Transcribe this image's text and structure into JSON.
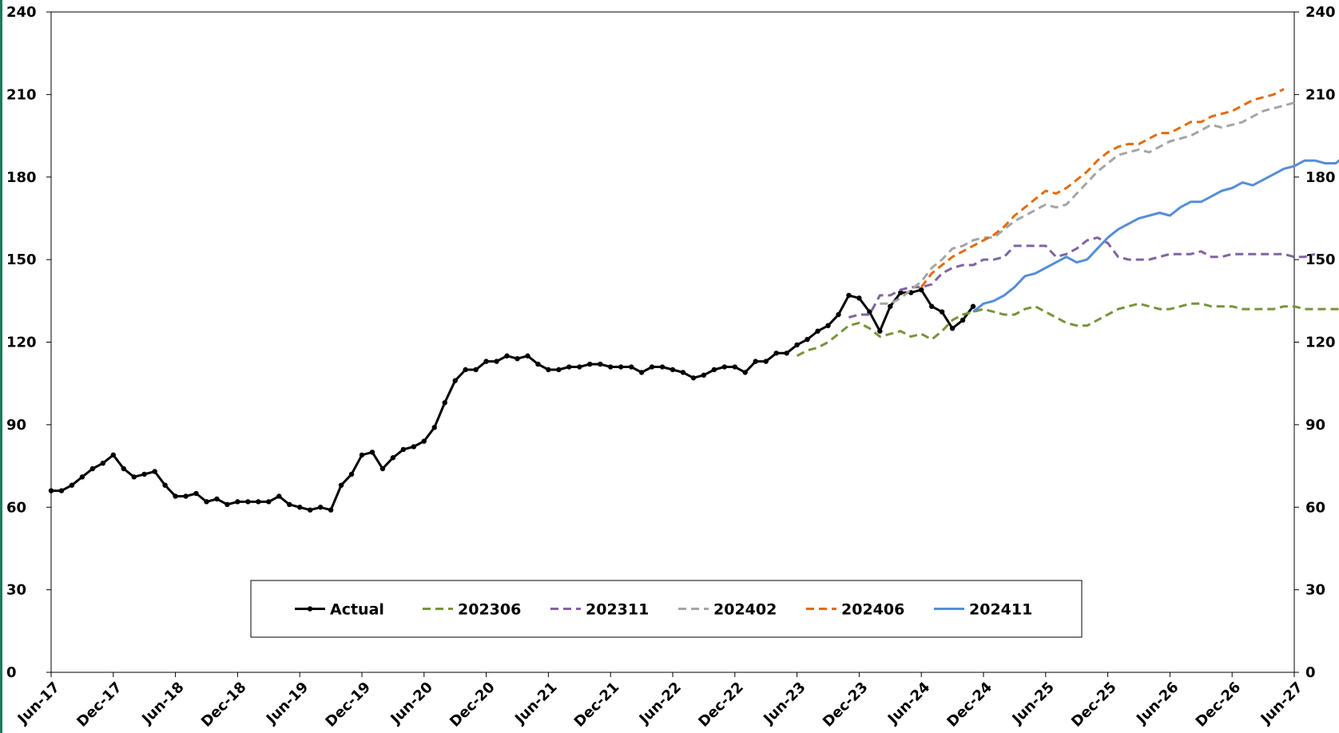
{
  "chart_data": {
    "type": "line",
    "title": "",
    "xlabel": "",
    "ylabel": "",
    "ylim": [
      0,
      240
    ],
    "yticks": [
      "0",
      "30",
      "60",
      "90",
      "120",
      "150",
      "180",
      "210",
      "240"
    ],
    "xticks": [
      "Jun-17",
      "Dec-17",
      "Jun-18",
      "Dec-18",
      "Jun-19",
      "Dec-19",
      "Jun-20",
      "Dec-20",
      "Jun-21",
      "Dec-21",
      "Jun-22",
      "Dec-22",
      "Jun-23",
      "Dec-23",
      "Jun-24",
      "Dec-24",
      "Jun-25",
      "Dec-25",
      "Jun-26",
      "Dec-26",
      "Jun-27"
    ],
    "x_range": [
      "Jun-17",
      "Jun-27"
    ],
    "grid": false,
    "legend_position": "bottom-center",
    "secondary_y_axis": true,
    "series": [
      {
        "name": "Actual",
        "color": "#000000",
        "style": "solid-markers",
        "start": "Jun-17",
        "values": [
          66,
          66,
          68,
          71,
          74,
          76,
          79,
          74,
          71,
          72,
          73,
          68,
          64,
          64,
          65,
          62,
          63,
          61,
          62,
          62,
          62,
          62,
          64,
          61,
          60,
          59,
          60,
          59,
          68,
          72,
          79,
          80,
          74,
          78,
          81,
          82,
          84,
          89,
          98,
          106,
          110,
          110,
          113,
          113,
          115,
          114,
          115,
          112,
          110,
          110,
          111,
          111,
          112,
          112,
          111,
          111,
          111,
          109,
          111,
          111,
          110,
          109,
          107,
          108,
          110,
          111,
          111,
          109,
          113,
          113,
          116,
          116,
          119,
          121,
          124,
          126,
          130,
          137,
          136,
          131,
          124,
          133,
          138,
          138,
          139,
          133,
          131,
          125,
          128,
          133
        ]
      },
      {
        "name": "202306",
        "color": "#77933c",
        "style": "dashed",
        "start": "Jun-23",
        "values": [
          115,
          117,
          118,
          120,
          123,
          126,
          127,
          125,
          122,
          123,
          124,
          122,
          123,
          121,
          124,
          128,
          130,
          131,
          132,
          131,
          130,
          130,
          132,
          133,
          131,
          129,
          127,
          126,
          126,
          128,
          130,
          132,
          133,
          134,
          133,
          132,
          132,
          133,
          134,
          134,
          133,
          133,
          133,
          132,
          132,
          132,
          132,
          133,
          133,
          132,
          132,
          132,
          132,
          132,
          131
        ]
      },
      {
        "name": "202311",
        "color": "#8064a2",
        "style": "dashed",
        "start": "Nov-23",
        "values": [
          129,
          130,
          130,
          137,
          137,
          139,
          140,
          140,
          141,
          145,
          147,
          148,
          148,
          150,
          150,
          151,
          155,
          155,
          155,
          155,
          151,
          152,
          154,
          157,
          158,
          156,
          151,
          150,
          150,
          150,
          151,
          152,
          152,
          152,
          153,
          151,
          151,
          152,
          152,
          152,
          152,
          152,
          152,
          151,
          151,
          152
        ]
      },
      {
        "name": "202402",
        "color": "#a5a5a5",
        "style": "dashed",
        "start": "Feb-24",
        "values": [
          134,
          134,
          136,
          139,
          142,
          147,
          150,
          154,
          155,
          157,
          158,
          158,
          161,
          164,
          166,
          168,
          170,
          169,
          170,
          174,
          178,
          182,
          185,
          188,
          189,
          190,
          189,
          191,
          193,
          194,
          195,
          197,
          199,
          198,
          199,
          200,
          202,
          204,
          205,
          206,
          207
        ]
      },
      {
        "name": "202406",
        "color": "#e36c0a",
        "style": "dashed",
        "start": "Jun-24",
        "values": [
          140,
          145,
          148,
          151,
          153,
          155,
          157,
          159,
          162,
          166,
          169,
          172,
          175,
          174,
          176,
          179,
          182,
          186,
          189,
          191,
          192,
          192,
          194,
          196,
          196,
          198,
          200,
          200,
          202,
          203,
          204,
          206,
          208,
          209,
          210,
          212
        ]
      },
      {
        "name": "202411",
        "color": "#558ed5",
        "style": "solid",
        "start": "Nov-24",
        "values": [
          131,
          134,
          135,
          137,
          140,
          144,
          145,
          147,
          149,
          151,
          149,
          150,
          154,
          158,
          161,
          163,
          165,
          166,
          167,
          166,
          169,
          171,
          171,
          173,
          175,
          176,
          178,
          177,
          179,
          181,
          183,
          184,
          186,
          186,
          185,
          185,
          188,
          189,
          189
        ]
      }
    ]
  }
}
